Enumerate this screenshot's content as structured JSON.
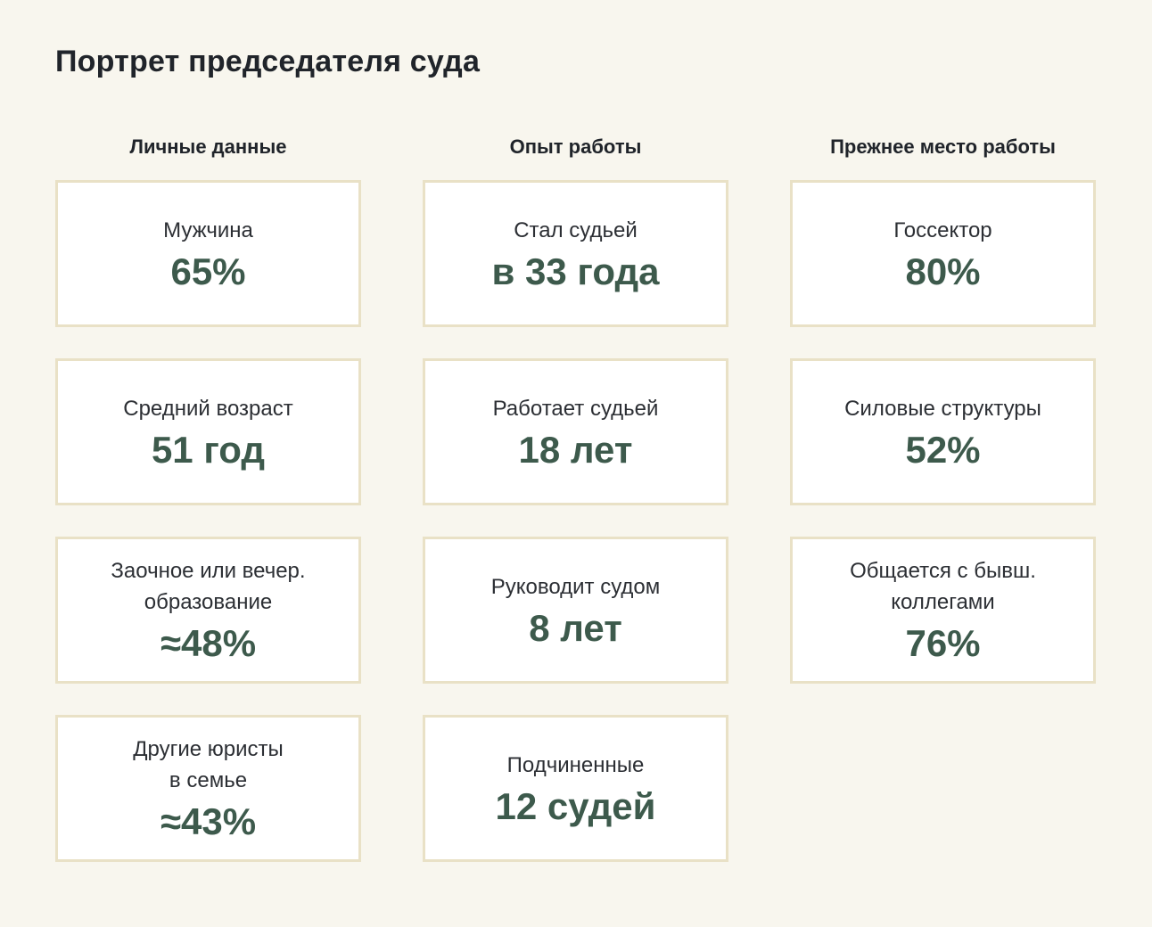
{
  "page": {
    "title": "Портрет председателя суда"
  },
  "colors": {
    "page_background": "#f8f6ee",
    "card_background": "#ffffff",
    "card_border": "#e9e1c6",
    "heading_text": "#20242a",
    "label_text": "#2c2f34",
    "value_accent_green": "#3d5a4c"
  },
  "columns": [
    {
      "header": "Личные данные",
      "cards": [
        {
          "label": "Мужчина",
          "value": "65%"
        },
        {
          "label": "Средний возраст",
          "value": "51 год"
        },
        {
          "label": "Заочное или вечер.\nобразование",
          "value": "≈48%"
        },
        {
          "label": "Другие юристы\nв семье",
          "value": "≈43%"
        }
      ]
    },
    {
      "header": "Опыт работы",
      "cards": [
        {
          "label": "Стал судьей",
          "value": "в 33 года"
        },
        {
          "label": "Работает судьей",
          "value": "18 лет"
        },
        {
          "label": "Руководит судом",
          "value": "8 лет"
        },
        {
          "label": "Подчиненные",
          "value": "12 судей"
        }
      ]
    },
    {
      "header": "Прежнее место работы",
      "cards": [
        {
          "label": "Госсектор",
          "value": "80%"
        },
        {
          "label": "Силовые структуры",
          "value": "52%"
        },
        {
          "label": "Общается с бывш.\nколлегами",
          "value": "76%"
        }
      ]
    }
  ],
  "chart_data": {
    "type": "table",
    "title": "Портрет председателя суда",
    "legend_position": "none",
    "groups": [
      {
        "name": "Личные данные",
        "items": [
          {
            "label": "Мужчина",
            "value": "65%"
          },
          {
            "label": "Средний возраст",
            "value": "51 год"
          },
          {
            "label": "Заочное или вечер. образование",
            "value": "≈48%"
          },
          {
            "label": "Другие юристы в семье",
            "value": "≈43%"
          }
        ]
      },
      {
        "name": "Опыт работы",
        "items": [
          {
            "label": "Стал судьей",
            "value": "в 33 года"
          },
          {
            "label": "Работает судьей",
            "value": "18 лет"
          },
          {
            "label": "Руководит судом",
            "value": "8 лет"
          },
          {
            "label": "Подчиненные",
            "value": "12 судей"
          }
        ]
      },
      {
        "name": "Прежнее место работы",
        "items": [
          {
            "label": "Госсектор",
            "value": "80%"
          },
          {
            "label": "Силовые структуры",
            "value": "52%"
          },
          {
            "label": "Общается с бывш. коллегами",
            "value": "76%"
          }
        ]
      }
    ]
  }
}
